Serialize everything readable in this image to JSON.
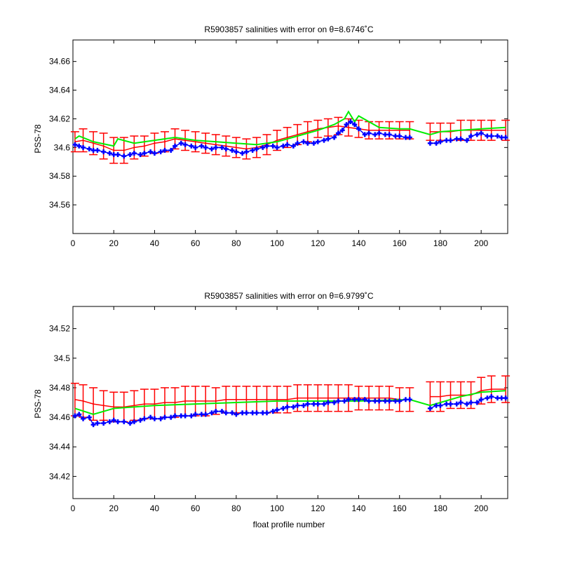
{
  "chart_data": [
    {
      "type": "line",
      "title": "R5903857 salinities with error on θ=8.6746˚C",
      "xlabel": "",
      "ylabel": "PSS-78",
      "xlim": [
        0,
        213
      ],
      "ylim": [
        34.54,
        34.675
      ],
      "xticks": [
        0,
        20,
        40,
        60,
        80,
        100,
        120,
        140,
        160,
        180,
        200
      ],
      "yticks": [
        34.56,
        34.58,
        34.6,
        34.62,
        34.64,
        34.66
      ],
      "ytick_labels": [
        "34.56",
        "34.58",
        "34.6",
        "34.62",
        "34.64",
        "34.66"
      ],
      "grid": false,
      "colors": {
        "mapped": "#ff0000",
        "float": "#0000ff",
        "calibrated": "#00ee00"
      },
      "segments": [
        [
          1,
          166
        ],
        [
          175,
          212
        ]
      ],
      "series": [
        {
          "role": "mapped_with_error",
          "x": [
            1,
            5,
            10,
            15,
            20,
            25,
            30,
            35,
            40,
            45,
            50,
            55,
            60,
            65,
            70,
            75,
            80,
            85,
            90,
            95,
            100,
            105,
            110,
            115,
            120,
            125,
            130,
            135,
            140,
            145,
            150,
            155,
            160,
            165,
            175,
            180,
            185,
            190,
            195,
            200,
            205,
            212
          ],
          "values": [
            34.604,
            34.605,
            34.603,
            34.601,
            34.598,
            34.598,
            34.6,
            34.601,
            34.603,
            34.604,
            34.606,
            34.605,
            34.604,
            34.603,
            34.602,
            34.601,
            34.6,
            34.599,
            34.6,
            34.602,
            34.605,
            34.607,
            34.609,
            34.611,
            34.613,
            34.614,
            34.615,
            34.614,
            34.613,
            34.612,
            34.612,
            34.612,
            34.612,
            34.612,
            34.611,
            34.611,
            34.611,
            34.612,
            34.612,
            34.612,
            34.612,
            34.612
          ],
          "errors": [
            0.007,
            0.008,
            0.008,
            0.009,
            0.009,
            0.009,
            0.008,
            0.007,
            0.007,
            0.007,
            0.007,
            0.007,
            0.007,
            0.007,
            0.007,
            0.007,
            0.007,
            0.007,
            0.007,
            0.007,
            0.007,
            0.007,
            0.007,
            0.007,
            0.006,
            0.006,
            0.006,
            0.006,
            0.006,
            0.006,
            0.006,
            0.006,
            0.006,
            0.006,
            0.006,
            0.006,
            0.006,
            0.007,
            0.007,
            0.007,
            0.007,
            0.007
          ]
        },
        {
          "role": "calibrated",
          "x": [
            1,
            3,
            10,
            20,
            22,
            30,
            40,
            50,
            60,
            70,
            80,
            90,
            100,
            110,
            120,
            128,
            133,
            135,
            138,
            140,
            150,
            160,
            165,
            175,
            180,
            190,
            200,
            212
          ],
          "values": [
            34.606,
            34.608,
            34.604,
            34.601,
            34.606,
            34.603,
            34.605,
            34.607,
            34.605,
            34.604,
            34.603,
            34.602,
            34.604,
            34.608,
            34.612,
            34.616,
            34.62,
            34.625,
            34.618,
            34.622,
            34.614,
            34.613,
            34.613,
            34.609,
            34.611,
            34.612,
            34.613,
            34.614
          ]
        },
        {
          "role": "float",
          "x": [
            1,
            3,
            5,
            8,
            10,
            12,
            15,
            18,
            20,
            22,
            25,
            28,
            30,
            33,
            35,
            38,
            40,
            43,
            45,
            48,
            50,
            53,
            55,
            58,
            60,
            63,
            65,
            68,
            70,
            73,
            75,
            78,
            80,
            83,
            85,
            88,
            90,
            93,
            95,
            98,
            100,
            103,
            105,
            108,
            110,
            113,
            115,
            118,
            120,
            123,
            125,
            128,
            130,
            132,
            134,
            136,
            138,
            140,
            143,
            145,
            148,
            150,
            153,
            155,
            158,
            160,
            163,
            165,
            175,
            178,
            180,
            183,
            185,
            188,
            190,
            193,
            195,
            198,
            200,
            203,
            205,
            208,
            210,
            212
          ],
          "values": [
            34.602,
            34.601,
            34.6,
            34.599,
            34.598,
            34.598,
            34.597,
            34.596,
            34.595,
            34.595,
            34.594,
            34.595,
            34.596,
            34.595,
            34.596,
            34.597,
            34.596,
            34.597,
            34.598,
            34.598,
            34.601,
            34.603,
            34.602,
            34.601,
            34.6,
            34.601,
            34.6,
            34.599,
            34.6,
            34.6,
            34.599,
            34.598,
            34.597,
            34.596,
            34.597,
            34.598,
            34.599,
            34.6,
            34.601,
            34.601,
            34.6,
            34.601,
            34.602,
            34.601,
            34.603,
            34.604,
            34.603,
            34.603,
            34.604,
            34.605,
            34.606,
            34.607,
            34.61,
            34.612,
            34.616,
            34.618,
            34.616,
            34.613,
            34.609,
            34.61,
            34.609,
            34.61,
            34.609,
            34.609,
            34.608,
            34.608,
            34.607,
            34.607,
            34.603,
            34.603,
            34.604,
            34.605,
            34.605,
            34.606,
            34.606,
            34.605,
            34.608,
            34.609,
            34.61,
            34.608,
            34.608,
            34.608,
            34.607,
            34.607
          ]
        }
      ]
    },
    {
      "type": "line",
      "title": "R5903857 salinities with error on θ=6.9799˚C",
      "xlabel": "float profile number",
      "ylabel": "PSS-78",
      "xlim": [
        0,
        213
      ],
      "ylim": [
        34.405,
        34.535
      ],
      "xticks": [
        0,
        20,
        40,
        60,
        80,
        100,
        120,
        140,
        160,
        180,
        200
      ],
      "yticks": [
        34.42,
        34.44,
        34.46,
        34.48,
        34.5,
        34.52
      ],
      "ytick_labels": [
        "34.42",
        "34.44",
        "34.46",
        "34.48",
        "34.5",
        "34.52"
      ],
      "grid": false,
      "colors": {
        "mapped": "#ff0000",
        "float": "#0000ff",
        "calibrated": "#00ee00"
      },
      "segments": [
        [
          1,
          166
        ],
        [
          175,
          212
        ]
      ],
      "series": [
        {
          "role": "mapped_with_error",
          "x": [
            1,
            5,
            10,
            15,
            20,
            25,
            30,
            35,
            40,
            45,
            50,
            55,
            60,
            65,
            70,
            75,
            80,
            85,
            90,
            95,
            100,
            105,
            110,
            115,
            120,
            125,
            130,
            135,
            140,
            145,
            150,
            155,
            160,
            165,
            175,
            180,
            185,
            190,
            195,
            200,
            205,
            212
          ],
          "values": [
            34.472,
            34.471,
            34.469,
            34.468,
            34.467,
            34.467,
            34.468,
            34.469,
            34.469,
            34.47,
            34.47,
            34.471,
            34.471,
            34.471,
            34.471,
            34.472,
            34.472,
            34.472,
            34.472,
            34.472,
            34.472,
            34.472,
            34.473,
            34.473,
            34.473,
            34.473,
            34.473,
            34.473,
            34.473,
            34.473,
            34.473,
            34.473,
            34.472,
            34.472,
            34.474,
            34.474,
            34.475,
            34.475,
            34.475,
            34.478,
            34.479,
            34.479
          ],
          "errors": [
            0.011,
            0.011,
            0.011,
            0.01,
            0.01,
            0.01,
            0.01,
            0.01,
            0.01,
            0.01,
            0.01,
            0.01,
            0.01,
            0.01,
            0.009,
            0.009,
            0.009,
            0.009,
            0.009,
            0.009,
            0.009,
            0.009,
            0.009,
            0.009,
            0.009,
            0.009,
            0.009,
            0.009,
            0.008,
            0.008,
            0.008,
            0.008,
            0.008,
            0.008,
            0.01,
            0.01,
            0.009,
            0.009,
            0.009,
            0.009,
            0.009,
            0.009
          ]
        },
        {
          "role": "calibrated",
          "x": [
            1,
            10,
            20,
            40,
            60,
            80,
            100,
            120,
            140,
            165,
            175,
            190,
            200,
            212
          ],
          "values": [
            34.466,
            34.462,
            34.466,
            34.468,
            34.469,
            34.47,
            34.471,
            34.471,
            34.471,
            34.472,
            34.468,
            34.474,
            34.477,
            34.478
          ]
        },
        {
          "role": "float",
          "x": [
            1,
            3,
            5,
            8,
            10,
            12,
            15,
            18,
            20,
            22,
            25,
            28,
            30,
            33,
            35,
            38,
            40,
            43,
            45,
            48,
            50,
            53,
            55,
            58,
            60,
            63,
            65,
            68,
            70,
            73,
            75,
            78,
            80,
            83,
            85,
            88,
            90,
            93,
            95,
            98,
            100,
            103,
            105,
            108,
            110,
            113,
            115,
            118,
            120,
            123,
            125,
            128,
            130,
            133,
            135,
            138,
            140,
            143,
            145,
            148,
            150,
            153,
            155,
            158,
            160,
            163,
            165,
            175,
            178,
            180,
            183,
            185,
            188,
            190,
            193,
            195,
            198,
            200,
            203,
            205,
            208,
            210,
            212
          ],
          "values": [
            34.461,
            34.462,
            34.459,
            34.46,
            34.455,
            34.456,
            34.456,
            34.457,
            34.458,
            34.457,
            34.457,
            34.456,
            34.457,
            34.458,
            34.459,
            34.46,
            34.459,
            34.459,
            34.46,
            34.46,
            34.461,
            34.461,
            34.461,
            34.461,
            34.462,
            34.462,
            34.462,
            34.463,
            34.464,
            34.464,
            34.463,
            34.463,
            34.462,
            34.463,
            34.463,
            34.463,
            34.463,
            34.463,
            34.463,
            34.464,
            34.465,
            34.466,
            34.467,
            34.467,
            34.468,
            34.468,
            34.469,
            34.469,
            34.469,
            34.469,
            34.47,
            34.47,
            34.471,
            34.471,
            34.472,
            34.472,
            34.472,
            34.472,
            34.471,
            34.471,
            34.471,
            34.471,
            34.471,
            34.471,
            34.471,
            34.472,
            34.472,
            34.466,
            34.468,
            34.468,
            34.469,
            34.469,
            34.469,
            34.47,
            34.469,
            34.47,
            34.47,
            34.472,
            34.473,
            34.474,
            34.473,
            34.473,
            34.473
          ]
        }
      ]
    }
  ]
}
